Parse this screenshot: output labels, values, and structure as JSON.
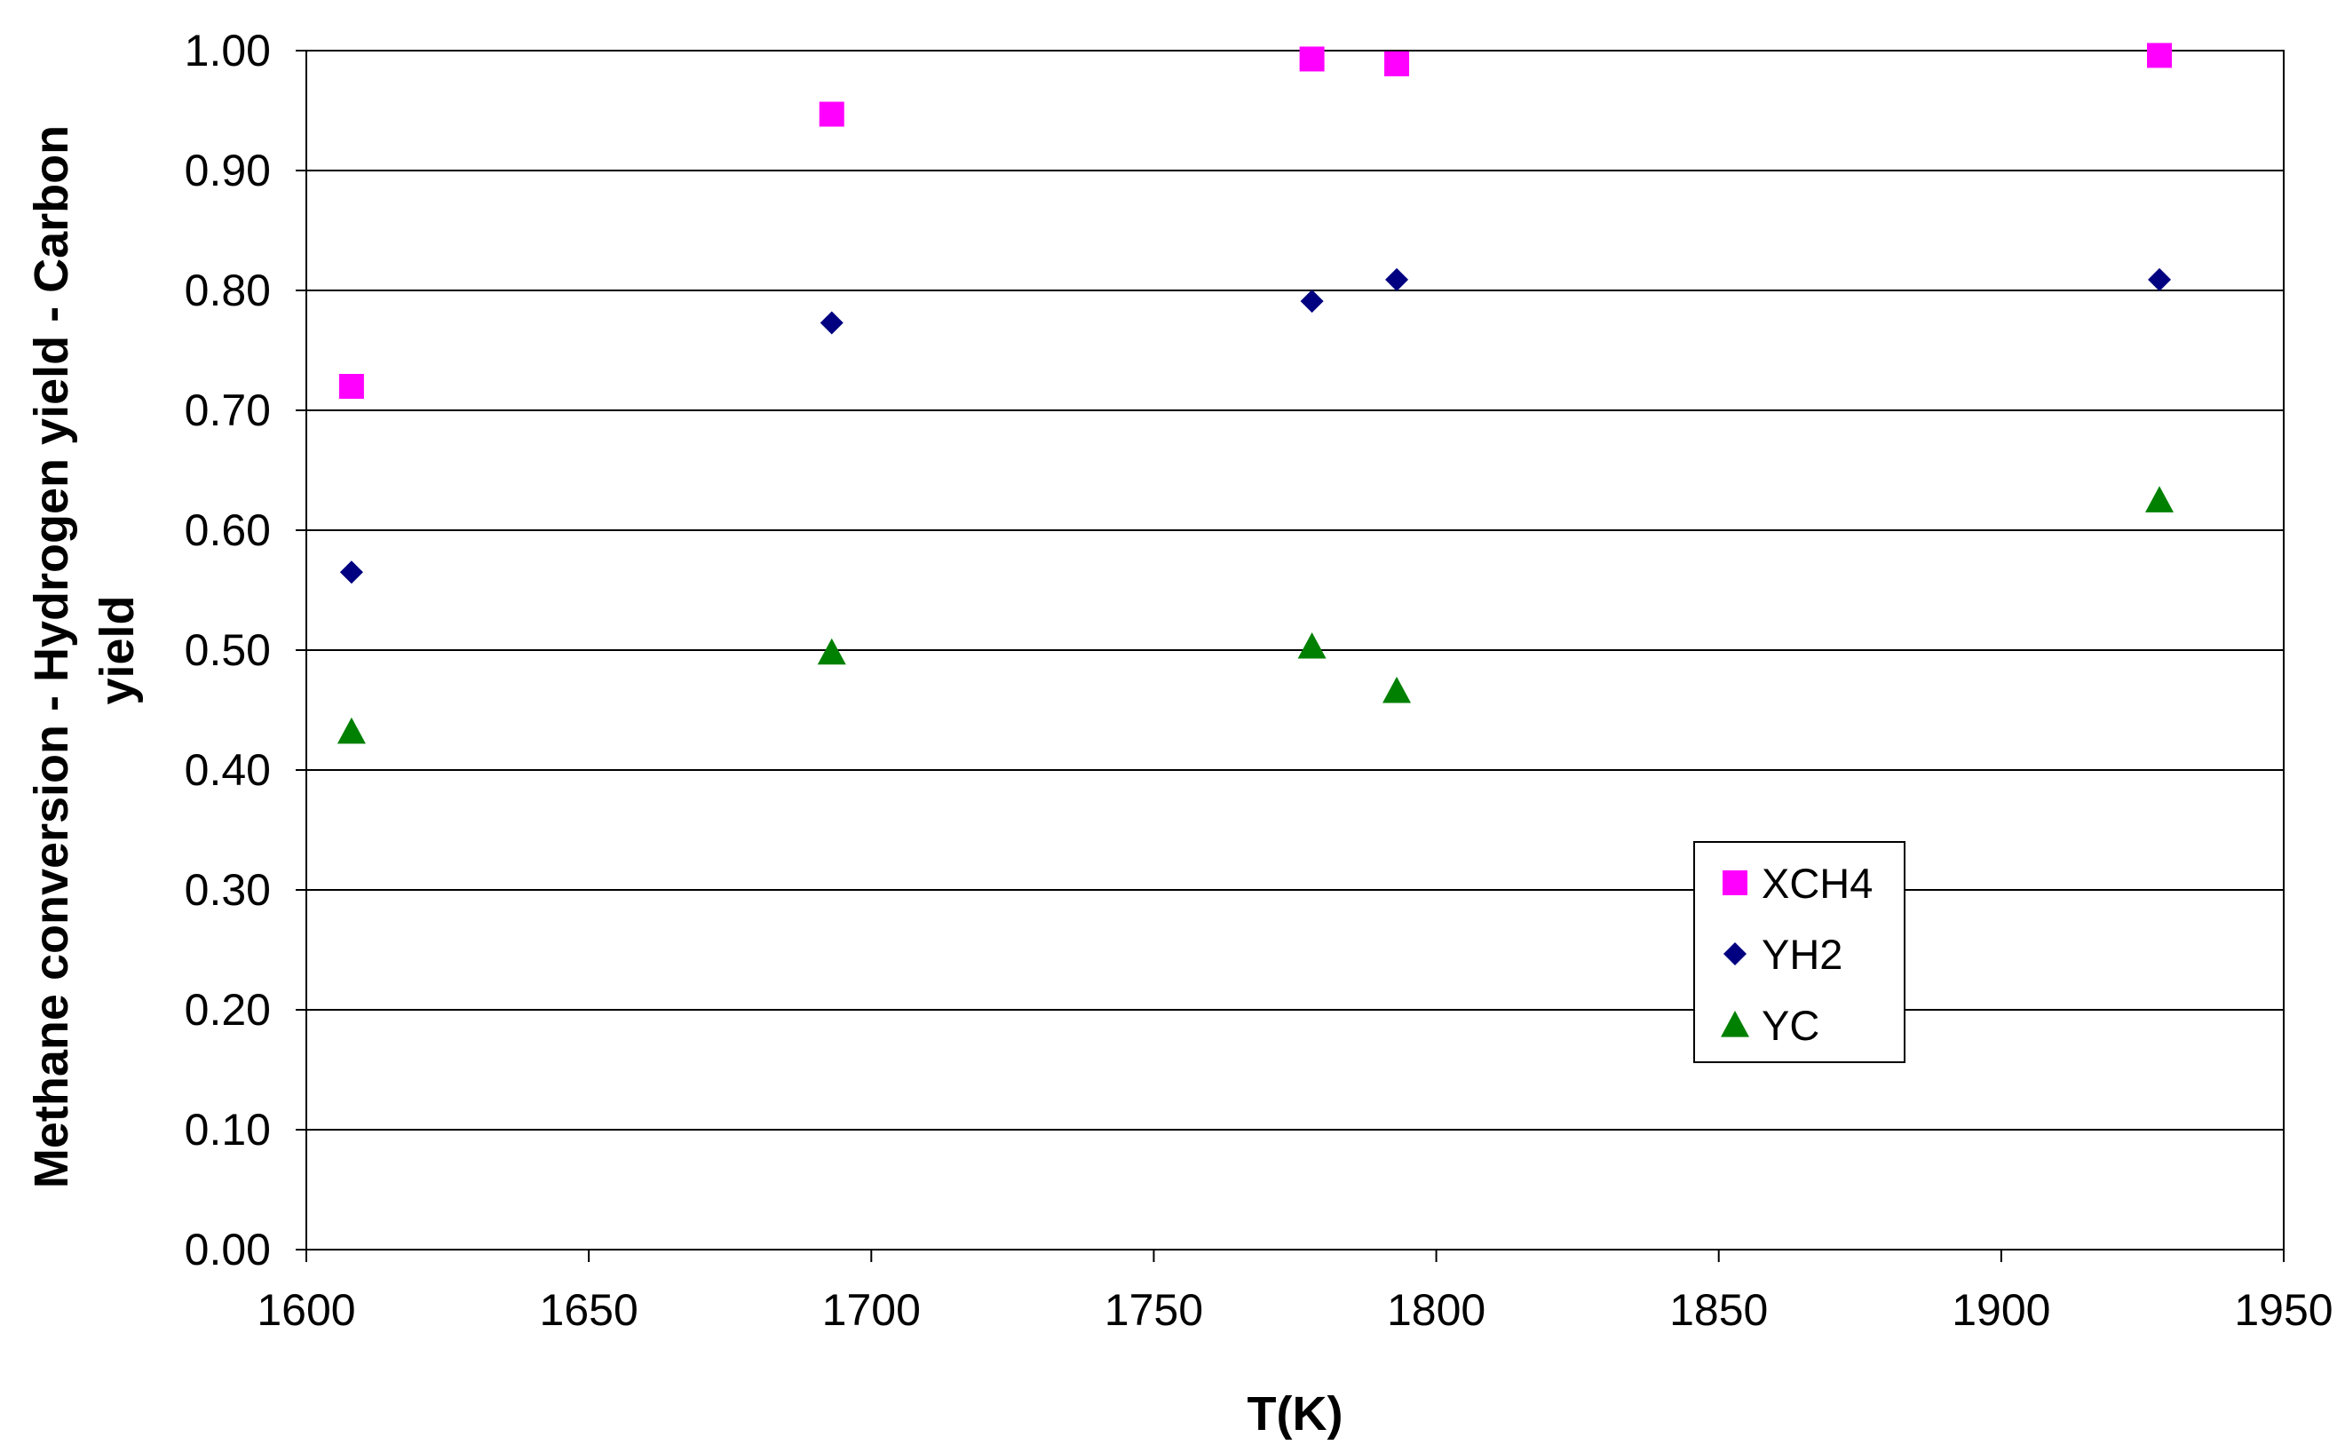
{
  "chart_data": {
    "type": "scatter",
    "title": "",
    "xlabel": "T(K)",
    "ylabel_lines": [
      "Methane conversion - Hydrogen yield - Carbon",
      "yield"
    ],
    "xlim": [
      1600,
      1950
    ],
    "ylim": [
      0,
      1
    ],
    "x_ticks": [
      1600,
      1650,
      1700,
      1750,
      1800,
      1850,
      1900,
      1950
    ],
    "x_tick_labels": [
      "1600",
      "1650",
      "1700",
      "1750",
      "1800",
      "1850",
      "1900",
      "1950"
    ],
    "y_ticks": [
      0,
      0.1,
      0.2,
      0.3,
      0.4,
      0.5,
      0.6,
      0.7,
      0.8,
      0.9,
      1.0
    ],
    "y_tick_labels": [
      "0.00",
      "0.10",
      "0.20",
      "0.30",
      "0.40",
      "0.50",
      "0.60",
      "0.70",
      "0.80",
      "0.90",
      "1.00"
    ],
    "grid": "horizontal",
    "legend_position": "lower-right",
    "series": [
      {
        "name": "XCH4",
        "marker": "square",
        "color": "#FF00FF",
        "x": [
          1608,
          1693,
          1778,
          1793,
          1928
        ],
        "y": [
          0.72,
          0.947,
          0.993,
          0.989,
          0.996
        ]
      },
      {
        "name": "YH2",
        "marker": "diamond",
        "color": "#000080",
        "x": [
          1608,
          1693,
          1778,
          1793,
          1928
        ],
        "y": [
          0.565,
          0.773,
          0.791,
          0.809,
          0.809
        ]
      },
      {
        "name": "YC",
        "marker": "triangle",
        "color": "#008000",
        "x": [
          1608,
          1693,
          1778,
          1793,
          1928
        ],
        "y": [
          0.432,
          0.498,
          0.503,
          0.466,
          0.625
        ]
      }
    ]
  }
}
